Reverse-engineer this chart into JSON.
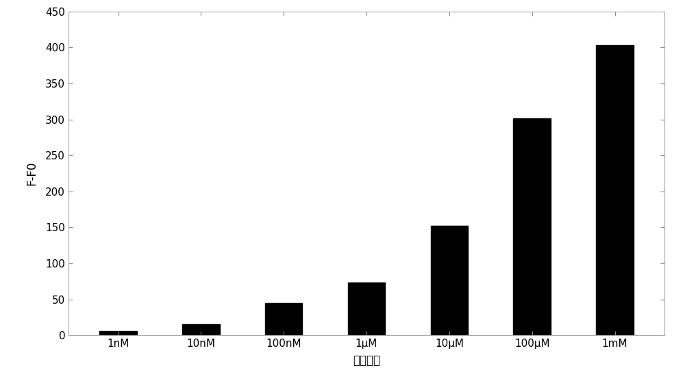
{
  "categories": [
    "1nM",
    "10nM",
    "100nM",
    "1μM",
    "10μM",
    "100μM",
    "1mM"
  ],
  "values": [
    6,
    15,
    45,
    73,
    152,
    301,
    403
  ],
  "bar_color": "#000000",
  "ylabel": "F-F0",
  "xlabel": "不同浓度",
  "ylim": [
    0,
    450
  ],
  "yticks": [
    0,
    50,
    100,
    150,
    200,
    250,
    300,
    350,
    400,
    450
  ],
  "background_color": "#ffffff",
  "bar_width": 0.45,
  "ylabel_fontsize": 12,
  "xlabel_fontsize": 12,
  "tick_fontsize": 11,
  "spine_color": "#aaaaaa",
  "spine_linewidth": 0.8
}
